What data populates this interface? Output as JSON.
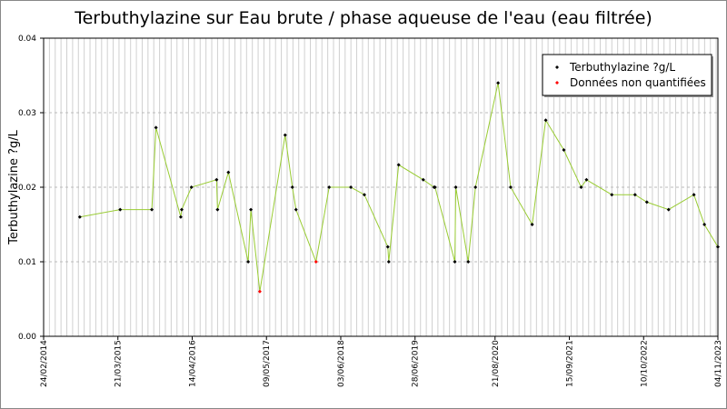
{
  "chart_data": {
    "type": "line",
    "title": "Terbuthylazine sur Eau brute / phase aqueuse de l'eau (eau filtrée)",
    "y_label": "Terbuthylazine ?g/L",
    "x": [
      "2014-09-02",
      "2015-04-02",
      "2015-09-15",
      "2015-10-07",
      "2016-02-14",
      "2016-02-19",
      "2016-04-10",
      "2016-08-20",
      "2016-08-25",
      "2016-10-21",
      "2017-02-02",
      "2017-02-16",
      "2017-04-04",
      "2017-08-15",
      "2017-09-22",
      "2017-10-11",
      "2018-01-24",
      "2018-04-03",
      "2018-07-26",
      "2018-10-05",
      "2019-02-05",
      "2019-02-10",
      "2019-04-03",
      "2019-08-10",
      "2019-10-06",
      "2019-10-11",
      "2020-01-23",
      "2020-01-28",
      "2020-04-02",
      "2020-05-10",
      "2020-09-06",
      "2020-11-11",
      "2021-03-04",
      "2021-05-14",
      "2021-08-17",
      "2021-11-16",
      "2021-12-14",
      "2022-04-26",
      "2022-08-26",
      "2022-10-27",
      "2023-02-18",
      "2023-07-01",
      "2023-08-25",
      "2023-11-04"
    ],
    "series": [
      {
        "name": "Terbuthylazine ?g/L",
        "color": "#000000",
        "values": [
          0.016,
          0.017,
          0.017,
          0.028,
          0.016,
          0.017,
          0.02,
          0.021,
          0.017,
          0.022,
          0.01,
          0.017,
          null,
          0.027,
          0.02,
          0.017,
          null,
          0.02,
          0.02,
          0.019,
          0.012,
          0.01,
          0.023,
          0.021,
          0.02,
          0.02,
          0.01,
          0.02,
          0.01,
          0.02,
          0.034,
          0.02,
          0.015,
          0.029,
          0.025,
          0.02,
          0.021,
          0.019,
          0.019,
          0.018,
          0.017,
          0.019,
          0.015,
          0.012
        ]
      },
      {
        "name": "Données non quantifiées",
        "color": "#ff0000",
        "values": [
          null,
          null,
          null,
          null,
          null,
          null,
          null,
          null,
          null,
          null,
          null,
          null,
          0.006,
          null,
          null,
          null,
          0.01,
          null,
          null,
          null,
          null,
          null,
          null,
          null,
          null,
          null,
          null,
          null,
          null,
          null,
          null,
          null,
          null,
          null,
          null,
          null,
          null,
          null,
          null,
          null,
          null,
          null,
          null,
          null
        ]
      }
    ],
    "line_color": "#99cc33",
    "xlim": [
      "2014-02-24",
      "2023-11-04"
    ],
    "xticks": [
      {
        "value": "2014-02-24",
        "label": "24/02/2014"
      },
      {
        "value": "2015-03-21",
        "label": "21/03/2015"
      },
      {
        "value": "2016-04-14",
        "label": "14/04/2016"
      },
      {
        "value": "2017-05-09",
        "label": "09/05/2017"
      },
      {
        "value": "2018-06-03",
        "label": "03/06/2018"
      },
      {
        "value": "2019-06-28",
        "label": "28/06/2019"
      },
      {
        "value": "2020-08-21",
        "label": "21/08/2020"
      },
      {
        "value": "2021-09-15",
        "label": "15/09/2021"
      },
      {
        "value": "2022-10-10",
        "label": "10/10/2022"
      },
      {
        "value": "2023-11-04",
        "label": "04/11/2023"
      }
    ],
    "ylim": [
      0,
      0.04
    ],
    "yticks": [
      {
        "value": 0,
        "label": "0.00"
      },
      0.01,
      0.02,
      0.03,
      0.04
    ],
    "grid": true,
    "legend": "upper right"
  }
}
